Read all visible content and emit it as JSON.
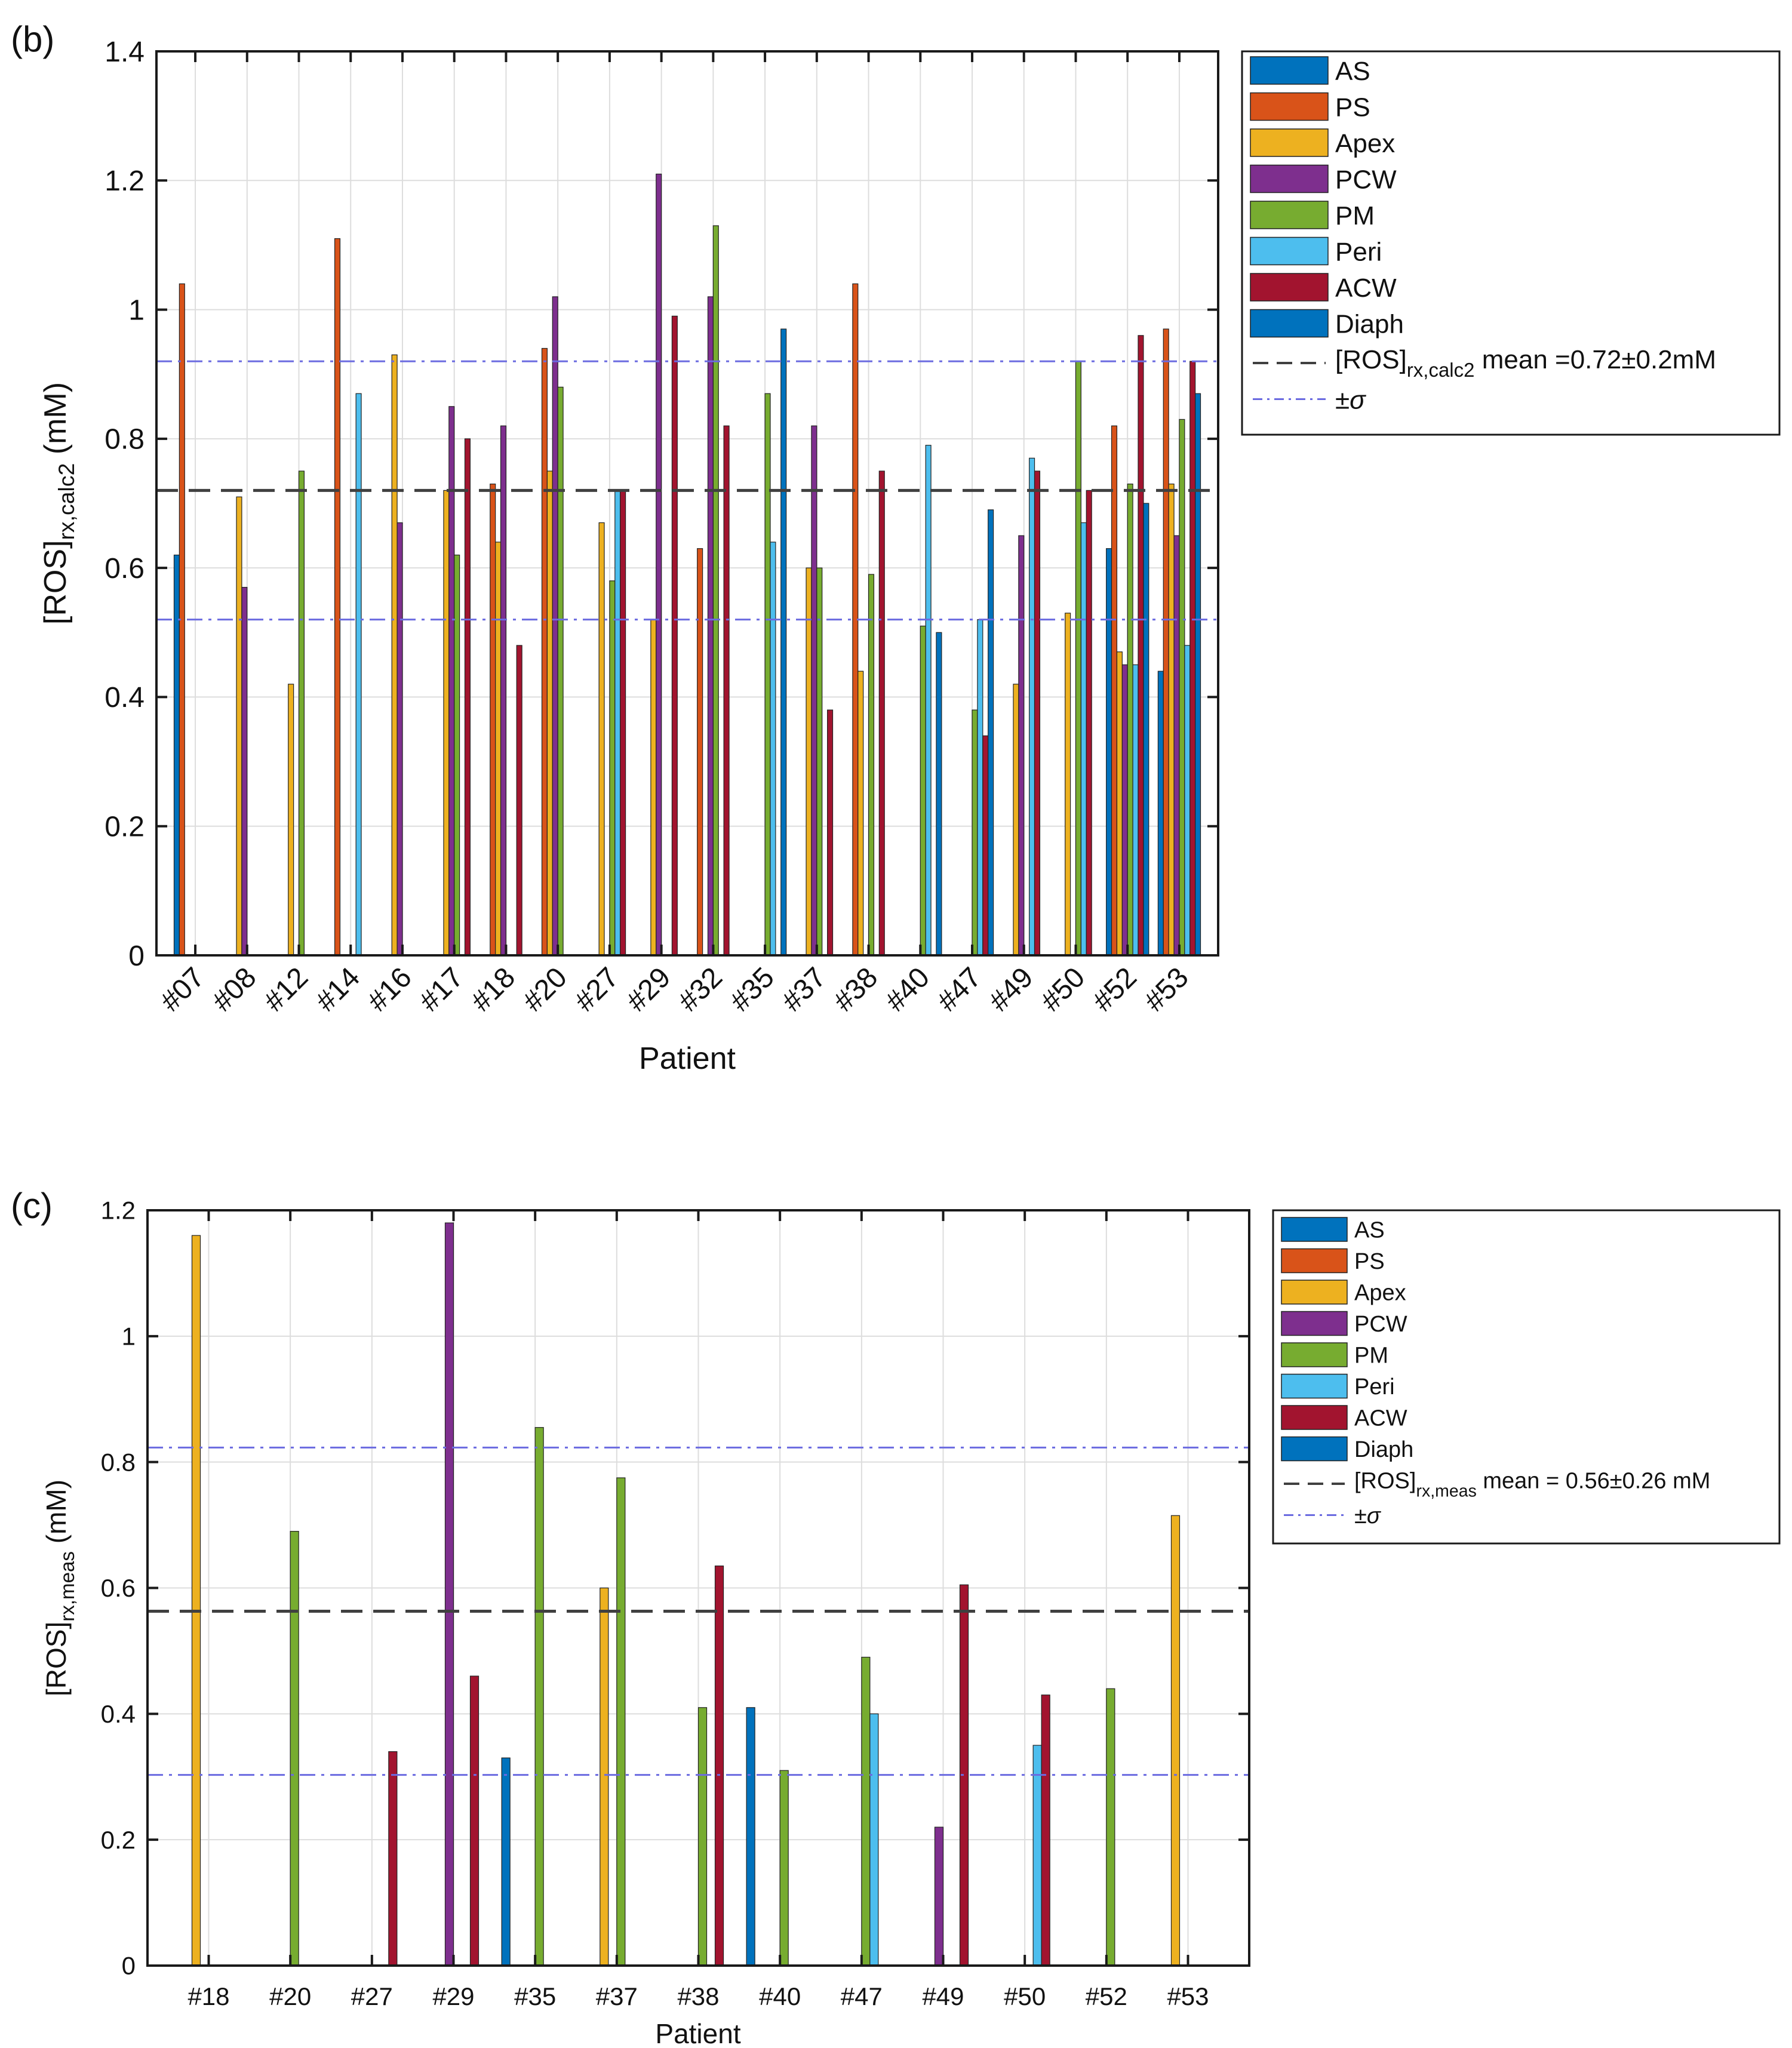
{
  "chart_data": [
    {
      "type": "bar",
      "panel_label": "(b)",
      "xlabel": "Patient",
      "ylabel_main": "[ROS]",
      "ylabel_sub": "rx,calc2",
      "ylabel_unit": " (mM)",
      "ylim": [
        0,
        1.4
      ],
      "yticks": [
        0,
        0.2,
        0.4,
        0.6,
        0.8,
        1,
        1.2,
        1.4
      ],
      "ytick_labels": [
        "0",
        "0.2",
        "0.4",
        "0.6",
        "0.8",
        "1",
        "1.2",
        "1.4"
      ],
      "grid": true,
      "categories": [
        "#07",
        "#08",
        "#12",
        "#14",
        "#16",
        "#17",
        "#18",
        "#20",
        "#27",
        "#29",
        "#32",
        "#35",
        "#37",
        "#38",
        "#40",
        "#47",
        "#49",
        "#50",
        "#52",
        "#53"
      ],
      "series": [
        {
          "name": "AS",
          "color": "#0072BD",
          "values": [
            0.62,
            null,
            null,
            null,
            null,
            null,
            null,
            null,
            null,
            null,
            null,
            null,
            null,
            null,
            null,
            null,
            null,
            null,
            0.63,
            0.44
          ]
        },
        {
          "name": "PS",
          "color": "#D95319",
          "values": [
            1.04,
            null,
            null,
            1.11,
            null,
            null,
            0.73,
            0.94,
            null,
            null,
            0.63,
            null,
            null,
            1.04,
            null,
            null,
            null,
            null,
            0.82,
            0.97
          ]
        },
        {
          "name": "Apex",
          "color": "#EDB120",
          "values": [
            null,
            0.71,
            0.42,
            null,
            0.93,
            0.72,
            0.64,
            0.75,
            0.67,
            0.52,
            null,
            null,
            0.6,
            0.44,
            null,
            null,
            0.42,
            0.53,
            0.47,
            0.73
          ]
        },
        {
          "name": "PCW",
          "color": "#7E2F8E",
          "values": [
            null,
            0.57,
            null,
            null,
            0.67,
            0.85,
            0.82,
            1.02,
            null,
            1.21,
            1.02,
            null,
            0.82,
            null,
            null,
            null,
            0.65,
            null,
            0.45,
            0.65
          ]
        },
        {
          "name": "PM",
          "color": "#77AC30",
          "values": [
            null,
            null,
            0.75,
            null,
            null,
            0.62,
            null,
            0.88,
            0.58,
            null,
            1.13,
            0.87,
            0.6,
            0.59,
            0.51,
            0.38,
            null,
            0.92,
            0.73,
            0.83
          ]
        },
        {
          "name": "Peri",
          "color": "#4DBEEE",
          "values": [
            null,
            null,
            null,
            0.87,
            null,
            null,
            null,
            null,
            0.72,
            null,
            null,
            0.64,
            null,
            null,
            0.79,
            0.52,
            0.77,
            0.67,
            0.45,
            0.48
          ]
        },
        {
          "name": "ACW",
          "color": "#A2142F",
          "values": [
            null,
            null,
            null,
            null,
            null,
            0.8,
            0.48,
            null,
            0.72,
            0.99,
            0.82,
            null,
            0.38,
            0.75,
            null,
            0.34,
            0.75,
            0.72,
            0.96,
            0.92
          ]
        },
        {
          "name": "Diaph",
          "color": "#0072BD",
          "values": [
            null,
            null,
            null,
            null,
            null,
            null,
            null,
            null,
            null,
            null,
            null,
            0.97,
            null,
            null,
            0.5,
            0.69,
            null,
            null,
            0.7,
            0.87
          ]
        }
      ],
      "mean_line": {
        "value": 0.72,
        "color": "#404040",
        "label_main": "[ROS]",
        "label_sub": "rx,calc2",
        "label_rest": " mean =0.72±0.2mM"
      },
      "sigma_lines": {
        "values": [
          0.52,
          0.92
        ],
        "color": "#6B6BE0",
        "label": "±σ"
      },
      "legend_position": "outside-right"
    },
    {
      "type": "bar",
      "panel_label": "(c)",
      "xlabel": "Patient",
      "ylabel_main": "[ROS]",
      "ylabel_sub": "rx,meas",
      "ylabel_unit": " (mM)",
      "ylim": [
        0,
        1.2
      ],
      "yticks": [
        0,
        0.2,
        0.4,
        0.6,
        0.8,
        1,
        1.2
      ],
      "ytick_labels": [
        "0",
        "0.2",
        "0.4",
        "0.6",
        "0.8",
        "1",
        "1.2"
      ],
      "grid": true,
      "categories": [
        "#18",
        "#20",
        "#27",
        "#29",
        "#35",
        "#37",
        "#38",
        "#40",
        "#47",
        "#49",
        "#50",
        "#52",
        "#53"
      ],
      "series": [
        {
          "name": "AS",
          "color": "#0072BD",
          "values": [
            null,
            null,
            null,
            null,
            0.33,
            null,
            null,
            0.41,
            null,
            null,
            null,
            null,
            null
          ]
        },
        {
          "name": "PS",
          "color": "#D95319",
          "values": [
            null,
            null,
            null,
            null,
            null,
            null,
            null,
            null,
            null,
            null,
            null,
            null,
            null
          ]
        },
        {
          "name": "Apex",
          "color": "#EDB120",
          "values": [
            1.16,
            null,
            null,
            null,
            null,
            0.6,
            null,
            null,
            null,
            null,
            null,
            null,
            0.715
          ]
        },
        {
          "name": "PCW",
          "color": "#7E2F8E",
          "values": [
            null,
            null,
            null,
            1.18,
            null,
            null,
            null,
            null,
            null,
            0.22,
            null,
            null,
            null
          ]
        },
        {
          "name": "PM",
          "color": "#77AC30",
          "values": [
            null,
            0.69,
            null,
            null,
            0.855,
            0.775,
            0.41,
            0.31,
            0.49,
            null,
            null,
            0.44,
            null
          ]
        },
        {
          "name": "Peri",
          "color": "#4DBEEE",
          "values": [
            null,
            null,
            null,
            null,
            null,
            null,
            null,
            null,
            0.4,
            null,
            0.35,
            null,
            null
          ]
        },
        {
          "name": "ACW",
          "color": "#A2142F",
          "values": [
            null,
            null,
            0.34,
            0.46,
            null,
            null,
            0.635,
            null,
            null,
            0.605,
            0.43,
            null,
            null
          ]
        },
        {
          "name": "Diaph",
          "color": "#0072BD",
          "values": [
            null,
            null,
            null,
            null,
            null,
            null,
            null,
            null,
            null,
            null,
            null,
            null,
            null
          ]
        }
      ],
      "mean_line": {
        "value": 0.563,
        "color": "#404040",
        "label_main": "[ROS]",
        "label_sub": "rx,meas",
        "label_rest": " mean = 0.56±0.26 mM"
      },
      "sigma_lines": {
        "values": [
          0.303,
          0.823
        ],
        "color": "#6B6BE0",
        "label": "±σ"
      },
      "legend_position": "outside-right"
    }
  ]
}
